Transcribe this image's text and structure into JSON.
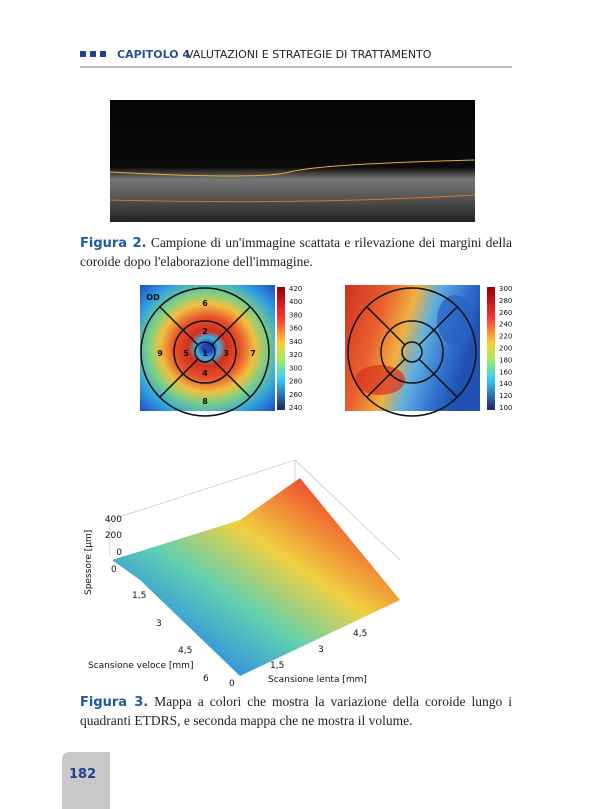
{
  "header": {
    "chapter": "CAPITOLO 4",
    "title": "VALUTAZIONI E STRATEGIE DI TRATTAMENTO"
  },
  "figure2": {
    "label": "Figura 2.",
    "caption": "Campione di un'immagine scattata e rilevazione dei margini della coroide dopo l'elaborazione dell'immagine."
  },
  "map1": {
    "eye": "OD",
    "sectors": [
      "6",
      "2",
      "9",
      "5",
      "1",
      "3",
      "7",
      "4",
      "8"
    ],
    "colorbar_ticks": [
      420,
      400,
      380,
      360,
      340,
      320,
      300,
      280,
      260,
      240
    ]
  },
  "map2": {
    "colorbar_ticks": [
      300,
      280,
      260,
      240,
      220,
      200,
      180,
      160,
      140,
      120,
      100
    ]
  },
  "plot3d": {
    "z_label": "Spessore [µm]",
    "z_ticks": [
      "400",
      "200",
      "0"
    ],
    "x_label": "Scansione veloce [mm]",
    "x_ticks": [
      "0",
      "1,5",
      "3",
      "4,5",
      "6"
    ],
    "y_label": "Scansione lenta [mm]",
    "y_ticks": [
      "0",
      "1,5",
      "3",
      "4,5"
    ]
  },
  "figure3": {
    "label": "Figura 3.",
    "caption": "Mappa a colori che mostra la variazione della coroide lungo i quadranti ETDRS, e seconda mappa che ne mostra il volume."
  },
  "page_number": "182"
}
